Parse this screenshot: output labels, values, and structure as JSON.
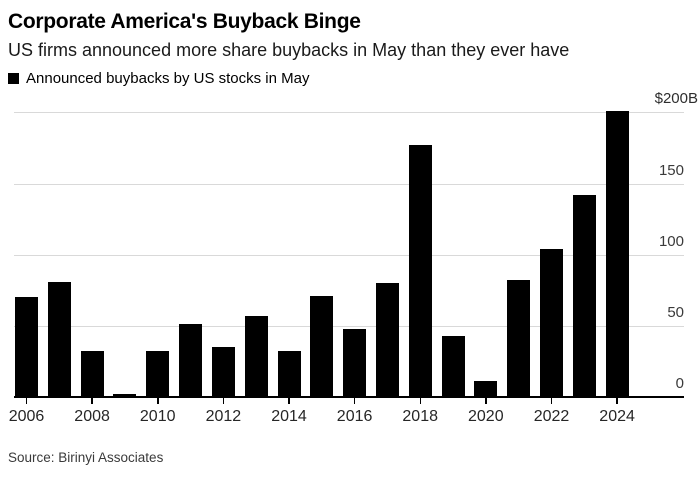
{
  "header": {
    "title": "Corporate America's Buyback Binge",
    "subtitle": "US firms announced more share buybacks in May than they ever have"
  },
  "legend": {
    "label": "Announced buybacks by US stocks in May",
    "marker_color": "#000000"
  },
  "source": "Source: Birinyi Associates",
  "colors": {
    "bar": "#000000",
    "gridline": "#d9d9d9",
    "background": "#ffffff"
  },
  "chart_data": {
    "type": "bar",
    "title": "Corporate America's Buyback Binge",
    "subtitle": "US firms announced more share buybacks in May than they ever have",
    "legend_entries": [
      "Announced buybacks by US stocks in May"
    ],
    "unit": "billions of US dollars",
    "categories": [
      2006,
      2007,
      2008,
      2009,
      2010,
      2011,
      2012,
      2013,
      2014,
      2015,
      2016,
      2017,
      2018,
      2019,
      2020,
      2021,
      2022,
      2023,
      2024
    ],
    "values": [
      70,
      81,
      32,
      2,
      32,
      51,
      35,
      57,
      32,
      71,
      48,
      80,
      177,
      43,
      11,
      82,
      104,
      142,
      201
    ],
    "yticks": [
      0,
      50,
      100,
      150,
      200
    ],
    "ytick_labels": [
      "0",
      "50",
      "100",
      "150",
      "$200B"
    ],
    "xtick_labels": [
      "2006",
      "2008",
      "2010",
      "2012",
      "2014",
      "2016",
      "2018",
      "2020",
      "2022",
      "2024"
    ],
    "ylim": [
      0,
      210
    ],
    "grid": true,
    "axis_label_side": "right",
    "legend_position": "top-left"
  }
}
